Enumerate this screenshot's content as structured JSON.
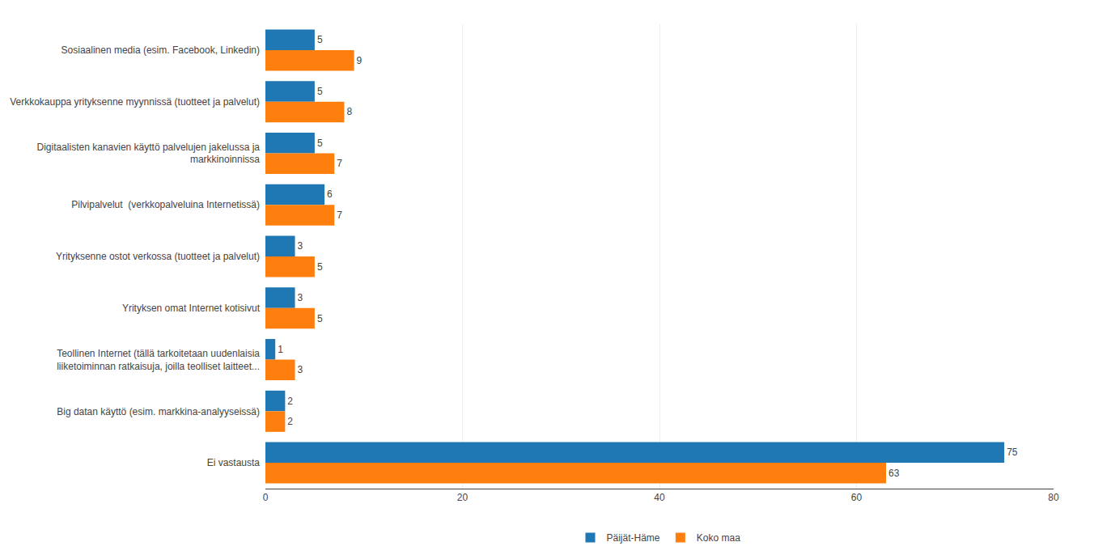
{
  "chart_data": {
    "type": "bar",
    "orientation": "horizontal",
    "categories": [
      "Sosiaalinen media (esim. Facebook, Linkedin)",
      "Verkkokauppa yrityksenne myynnissä (tuotteet ja palvelut)",
      "Digitaalisten kanavien käyttö palvelujen jakelussa ja\nmarkkinoinnissa",
      "Pilvipalvelut  (verkkopalveluina Internetissä)",
      "Yrityksenne ostot verkossa (tuotteet ja palvelut)",
      "Yrityksen omat Internet kotisivut",
      "Teollinen Internet (tällä tarkoitetaan uudenlaisia\nliiketoiminnan ratkaisuja, joilla teolliset laitteet...",
      "Big datan käyttö (esim. markkina-analyyseissä)",
      "Ei vastausta"
    ],
    "series": [
      {
        "name": "Päijät-Häme",
        "values": [
          5,
          5,
          5,
          6,
          3,
          3,
          1,
          2,
          75
        ]
      },
      {
        "name": "Koko maa",
        "values": [
          9,
          8,
          7,
          7,
          5,
          5,
          3,
          2,
          63
        ]
      }
    ],
    "xlim": [
      0,
      80
    ],
    "xticks": [
      0,
      20,
      40,
      60,
      80
    ],
    "grid": true,
    "legend": "bottom",
    "data_labels": true
  }
}
